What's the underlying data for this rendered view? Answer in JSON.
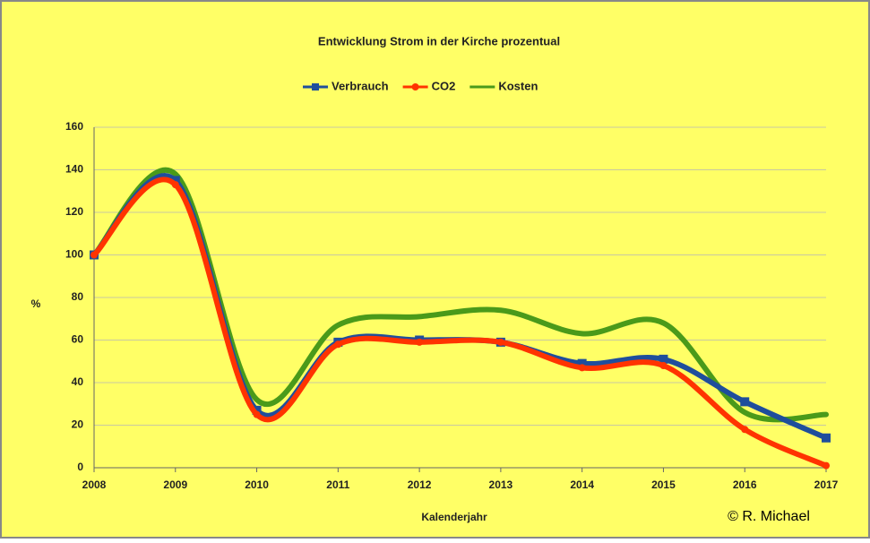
{
  "chart_data": {
    "type": "line",
    "title": "Entwicklung Strom in der Kirche prozentual",
    "x_label": "Kalenderjahr",
    "y_label": "%",
    "annotation": "© R. Michael",
    "categories": [
      "2008",
      "2009",
      "2010",
      "2011",
      "2012",
      "2013",
      "2014",
      "2015",
      "2016",
      "2017"
    ],
    "series": [
      {
        "name": "Verbrauch",
        "color": "#1f4e9c",
        "marker": "square",
        "values": [
          100,
          135,
          27,
          59,
          60,
          59,
          49,
          51,
          31,
          14
        ]
      },
      {
        "name": "CO2",
        "color": "#ff3300",
        "marker": "circle",
        "values": [
          100,
          133,
          25,
          58,
          59,
          59,
          47,
          48,
          18,
          1
        ]
      },
      {
        "name": "Kosten",
        "color": "#4a9a1a",
        "marker": "none",
        "values": [
          100,
          138,
          32,
          67,
          71,
          74,
          63,
          68,
          26,
          25
        ]
      }
    ],
    "ylim": [
      0,
      160
    ],
    "yticks": [
      0,
      20,
      40,
      60,
      80,
      100,
      120,
      140,
      160
    ],
    "grid": true,
    "legend": "top",
    "smooth": true
  }
}
